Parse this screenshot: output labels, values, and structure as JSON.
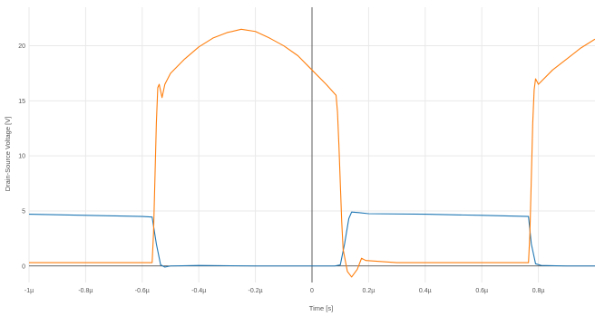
{
  "chart_data": {
    "type": "line",
    "xlabel": "Time [s]",
    "ylabel": "Drain-Source Voltage [V]",
    "xlim": [
      -1.0,
      1.0
    ],
    "ylim": [
      -1.5,
      23.5
    ],
    "x_unit": "µs",
    "x_ticks": [
      {
        "value": -1.0,
        "label": "-1µ"
      },
      {
        "value": -0.8,
        "label": "-0.8µ"
      },
      {
        "value": -0.6,
        "label": "-0.6µ"
      },
      {
        "value": -0.4,
        "label": "-0.4µ"
      },
      {
        "value": -0.2,
        "label": "-0.2µ"
      },
      {
        "value": 0.0,
        "label": "0"
      },
      {
        "value": 0.2,
        "label": "0.2µ"
      },
      {
        "value": 0.4,
        "label": "0.4µ"
      },
      {
        "value": 0.6,
        "label": "0.6µ"
      },
      {
        "value": 0.8,
        "label": "0.8µ"
      }
    ],
    "y_ticks": [
      {
        "value": 0,
        "label": "0"
      },
      {
        "value": 5,
        "label": "5"
      },
      {
        "value": 10,
        "label": "10"
      },
      {
        "value": 15,
        "label": "15"
      },
      {
        "value": 20,
        "label": "20"
      }
    ],
    "grid": true,
    "series": [
      {
        "color": "#1f77b4",
        "points": [
          [
            -1.0,
            4.7
          ],
          [
            -0.9,
            4.65
          ],
          [
            -0.8,
            4.6
          ],
          [
            -0.7,
            4.55
          ],
          [
            -0.6,
            4.5
          ],
          [
            -0.565,
            4.45
          ],
          [
            -0.55,
            2.0
          ],
          [
            -0.535,
            0.1
          ],
          [
            -0.52,
            -0.1
          ],
          [
            -0.5,
            0.0
          ],
          [
            -0.4,
            0.05
          ],
          [
            -0.2,
            0.0
          ],
          [
            0.0,
            0.0
          ],
          [
            0.08,
            0.0
          ],
          [
            0.1,
            0.1
          ],
          [
            0.115,
            2.0
          ],
          [
            0.13,
            4.3
          ],
          [
            0.14,
            4.9
          ],
          [
            0.165,
            4.85
          ],
          [
            0.2,
            4.75
          ],
          [
            0.4,
            4.7
          ],
          [
            0.6,
            4.6
          ],
          [
            0.765,
            4.5
          ],
          [
            0.775,
            2.0
          ],
          [
            0.79,
            0.2
          ],
          [
            0.81,
            0.05
          ],
          [
            0.9,
            0.0
          ],
          [
            1.0,
            0.0
          ]
        ]
      },
      {
        "color": "#ff7f0e",
        "points": [
          [
            -1.0,
            0.3
          ],
          [
            -0.8,
            0.3
          ],
          [
            -0.6,
            0.3
          ],
          [
            -0.565,
            0.3
          ],
          [
            -0.56,
            3.0
          ],
          [
            -0.555,
            8.0
          ],
          [
            -0.55,
            13.0
          ],
          [
            -0.545,
            16.2
          ],
          [
            -0.54,
            16.5
          ],
          [
            -0.53,
            15.3
          ],
          [
            -0.52,
            16.5
          ],
          [
            -0.5,
            17.5
          ],
          [
            -0.45,
            18.8
          ],
          [
            -0.4,
            19.9
          ],
          [
            -0.35,
            20.7
          ],
          [
            -0.3,
            21.2
          ],
          [
            -0.25,
            21.5
          ],
          [
            -0.2,
            21.3
          ],
          [
            -0.15,
            20.7
          ],
          [
            -0.1,
            20.0
          ],
          [
            -0.05,
            19.1
          ],
          [
            0.0,
            17.8
          ],
          [
            0.05,
            16.5
          ],
          [
            0.085,
            15.5
          ],
          [
            0.09,
            14.0
          ],
          [
            0.095,
            11.0
          ],
          [
            0.1,
            7.5
          ],
          [
            0.105,
            4.0
          ],
          [
            0.11,
            1.5
          ],
          [
            0.125,
            -0.5
          ],
          [
            0.14,
            -1.0
          ],
          [
            0.16,
            -0.3
          ],
          [
            0.175,
            0.7
          ],
          [
            0.19,
            0.5
          ],
          [
            0.3,
            0.3
          ],
          [
            0.5,
            0.3
          ],
          [
            0.7,
            0.3
          ],
          [
            0.765,
            0.3
          ],
          [
            0.77,
            3.0
          ],
          [
            0.775,
            8.0
          ],
          [
            0.78,
            13.0
          ],
          [
            0.785,
            16.0
          ],
          [
            0.79,
            17.0
          ],
          [
            0.8,
            16.5
          ],
          [
            0.85,
            17.8
          ],
          [
            0.9,
            18.8
          ],
          [
            0.95,
            19.8
          ],
          [
            1.0,
            20.6
          ]
        ]
      }
    ]
  }
}
